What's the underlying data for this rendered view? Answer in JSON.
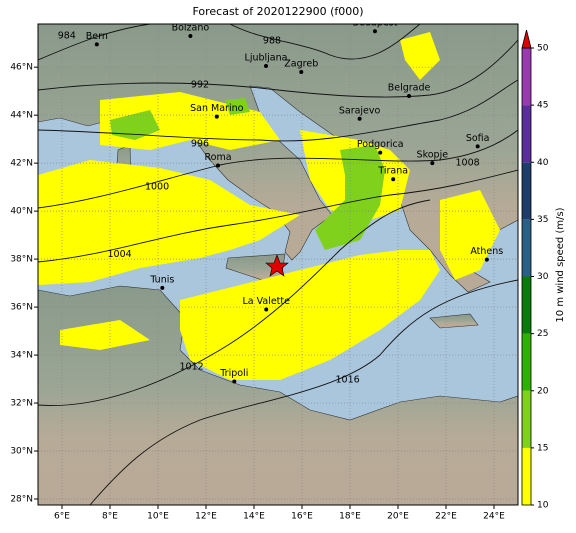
{
  "map": {
    "title": "Forecast of 2020122900 (f000)",
    "xlim": [
      5,
      25
    ],
    "ylim": [
      27.75,
      47.8
    ],
    "xticks": [
      {
        "value": 6,
        "label": "6°E"
      },
      {
        "value": 8,
        "label": "8°E"
      },
      {
        "value": 10,
        "label": "10°E"
      },
      {
        "value": 12,
        "label": "12°E"
      },
      {
        "value": 14,
        "label": "14°E"
      },
      {
        "value": 16,
        "label": "16°E"
      },
      {
        "value": 18,
        "label": "18°E"
      },
      {
        "value": 20,
        "label": "20°E"
      },
      {
        "value": 22,
        "label": "22°E"
      },
      {
        "value": 24,
        "label": "24°E"
      }
    ],
    "yticks": [
      {
        "value": 28,
        "label": "28°N"
      },
      {
        "value": 30,
        "label": "30°N"
      },
      {
        "value": 32,
        "label": "32°N"
      },
      {
        "value": 34,
        "label": "34°N"
      },
      {
        "value": 36,
        "label": "36°N"
      },
      {
        "value": 38,
        "label": "38°N"
      },
      {
        "value": 40,
        "label": "40°N"
      },
      {
        "value": 42,
        "label": "42°N"
      },
      {
        "value": 44,
        "label": "44°N"
      },
      {
        "value": 46,
        "label": "46°N"
      }
    ],
    "grid": true,
    "cities": [
      {
        "name": "Bern",
        "lon": 7.45,
        "lat": 46.95
      },
      {
        "name": "Bolzano",
        "lon": 11.35,
        "lat": 47.3
      },
      {
        "name": "Budapest",
        "lon": 19.04,
        "lat": 47.5
      },
      {
        "name": "Ljubljana",
        "lon": 14.5,
        "lat": 46.05
      },
      {
        "name": "Zagreb",
        "lon": 15.97,
        "lat": 45.8
      },
      {
        "name": "Belgrade",
        "lon": 20.46,
        "lat": 44.8
      },
      {
        "name": "Sarajevo",
        "lon": 18.4,
        "lat": 43.85
      },
      {
        "name": "San Marino",
        "lon": 12.45,
        "lat": 43.94
      },
      {
        "name": "Roma",
        "lon": 12.5,
        "lat": 41.9
      },
      {
        "name": "Podgorica",
        "lon": 19.26,
        "lat": 42.44
      },
      {
        "name": "Skopje",
        "lon": 21.43,
        "lat": 42.0
      },
      {
        "name": "Sofia",
        "lon": 23.32,
        "lat": 42.7
      },
      {
        "name": "Tirana",
        "lon": 19.8,
        "lat": 41.33
      },
      {
        "name": "Athens",
        "lon": 23.7,
        "lat": 37.98
      },
      {
        "name": "Tunis",
        "lon": 10.18,
        "lat": 36.8
      },
      {
        "name": "La Valette",
        "lon": 14.51,
        "lat": 35.9
      },
      {
        "name": "Tripoli",
        "lon": 13.18,
        "lat": 32.9
      }
    ],
    "isobar_labels": [
      {
        "value": 984,
        "lon": 6.2,
        "lat": 47.3
      },
      {
        "value": 988,
        "lon": 14.75,
        "lat": 47.1
      },
      {
        "value": 992,
        "lon": 11.75,
        "lat": 45.25
      },
      {
        "value": 996,
        "lon": 11.75,
        "lat": 42.8
      },
      {
        "value": 1000,
        "lon": 9.96,
        "lat": 41.0
      },
      {
        "value": 1004,
        "lon": 8.4,
        "lat": 38.2
      },
      {
        "value": 1008,
        "lon": 22.9,
        "lat": 42.0
      },
      {
        "value": 1012,
        "lon": 11.4,
        "lat": 33.5
      },
      {
        "value": 1016,
        "lon": 17.9,
        "lat": 32.96
      }
    ],
    "colorbar": {
      "label": "10 m wind speed (m/s)",
      "lim": [
        10,
        50
      ],
      "ticks": [
        10,
        15,
        20,
        25,
        30,
        35,
        40,
        45,
        50
      ],
      "colors": [
        "#ffff00",
        "#7fd11b",
        "#2fb100",
        "#0a7a0a",
        "#2a5f86",
        "#1f3d6a",
        "#5a2f9a",
        "#9a3ab0"
      ],
      "extend_color": "#dd0000"
    }
  }
}
